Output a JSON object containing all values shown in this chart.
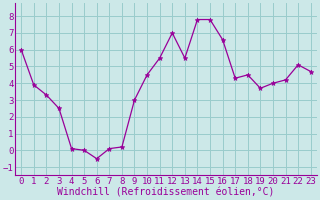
{
  "x": [
    0,
    1,
    2,
    3,
    4,
    5,
    6,
    7,
    8,
    9,
    10,
    11,
    12,
    13,
    14,
    15,
    16,
    17,
    18,
    19,
    20,
    21,
    22,
    23
  ],
  "y": [
    6.0,
    3.9,
    3.3,
    2.5,
    0.1,
    0.0,
    -0.5,
    0.1,
    0.2,
    3.0,
    4.5,
    5.5,
    7.0,
    5.5,
    7.8,
    7.8,
    6.6,
    4.3,
    4.5,
    3.7,
    4.0,
    4.2,
    5.1,
    4.7
  ],
  "line_color": "#990099",
  "marker": "*",
  "marker_size": 3.5,
  "background_color": "#cce8e8",
  "grid_color": "#99cccc",
  "xlabel": "Windchill (Refroidissement éolien,°C)",
  "xlabel_fontsize": 7,
  "tick_fontsize": 6.5,
  "ylim": [
    -1.5,
    8.8
  ],
  "xlim": [
    -0.5,
    23.5
  ],
  "yticks": [
    -1,
    0,
    1,
    2,
    3,
    4,
    5,
    6,
    7,
    8
  ],
  "xticks": [
    0,
    1,
    2,
    3,
    4,
    5,
    6,
    7,
    8,
    9,
    10,
    11,
    12,
    13,
    14,
    15,
    16,
    17,
    18,
    19,
    20,
    21,
    22,
    23
  ]
}
